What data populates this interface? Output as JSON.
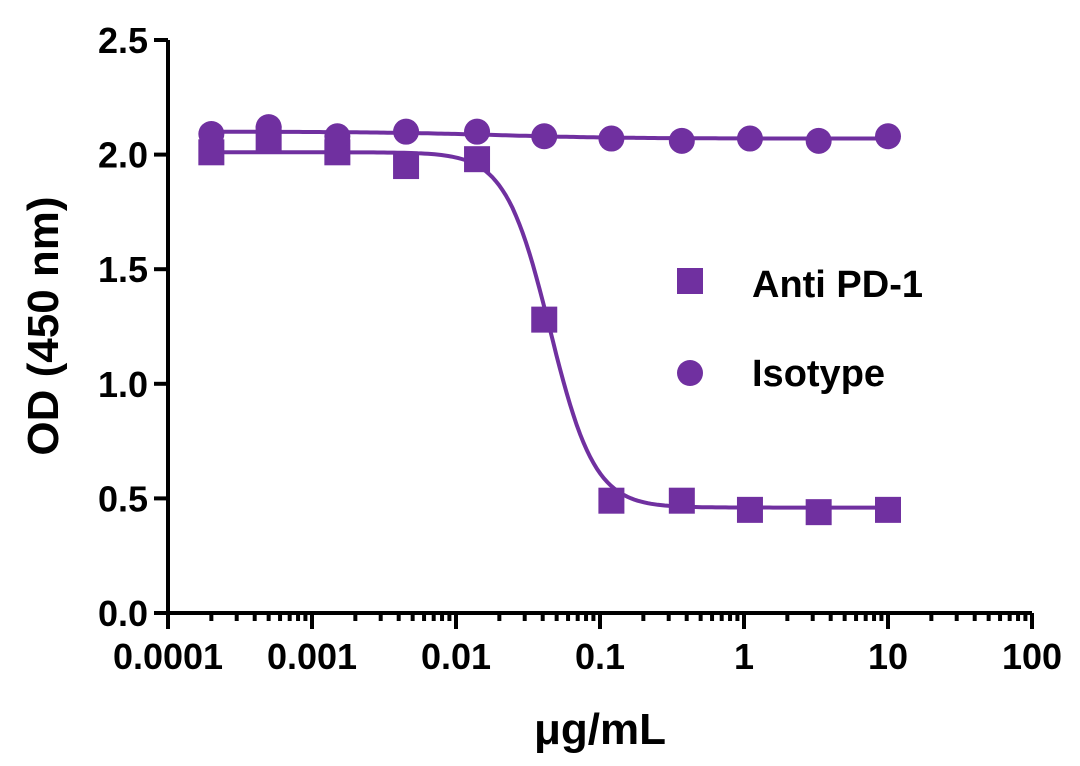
{
  "chart_data": {
    "type": "scatter",
    "title": "",
    "xlabel": "μg/mL",
    "ylabel": "OD (450 nm)",
    "xscale": "log",
    "xlim": [
      0.0001,
      100
    ],
    "ylim": [
      0.0,
      2.5
    ],
    "x_ticks": [
      "0.0001",
      "0.001",
      "0.01",
      "0.1",
      "1",
      "10",
      "100"
    ],
    "y_ticks": [
      "0.0",
      "0.5",
      "1.0",
      "1.5",
      "2.0",
      "2.5"
    ],
    "legend_position": "right-middle",
    "color": "#7030A0",
    "series": [
      {
        "name": "Anti PD-1",
        "marker": "square",
        "x": [
          0.0002,
          0.0005,
          0.0015,
          0.0045,
          0.014,
          0.041,
          0.12,
          0.37,
          1.1,
          3.3,
          10
        ],
        "y": [
          2.01,
          2.07,
          2.01,
          1.95,
          1.98,
          1.28,
          0.49,
          0.49,
          0.45,
          0.44,
          0.45
        ],
        "fit": {
          "model": "4PL",
          "top": 2.01,
          "bottom": 0.46,
          "ec50": 0.045,
          "hill": 2.8
        }
      },
      {
        "name": "Isotype",
        "marker": "circle",
        "x": [
          0.0002,
          0.0005,
          0.0015,
          0.0045,
          0.014,
          0.041,
          0.12,
          0.37,
          1.1,
          3.3,
          10
        ],
        "y": [
          2.09,
          2.12,
          2.08,
          2.1,
          2.1,
          2.08,
          2.07,
          2.06,
          2.07,
          2.06,
          2.08
        ],
        "fit": {
          "model": "4PL",
          "top": 2.1,
          "bottom": 2.07,
          "ec50": 0.02,
          "hill": 1.0
        }
      }
    ]
  }
}
